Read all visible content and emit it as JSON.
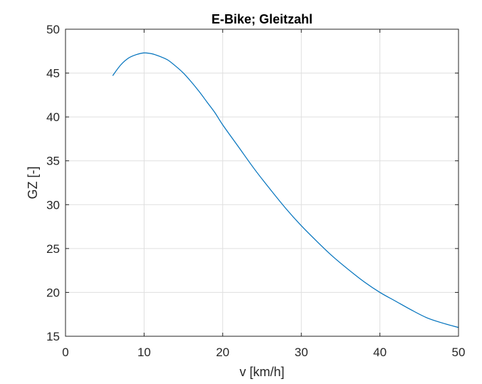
{
  "chart_data": {
    "type": "line",
    "title": "E-Bike; Gleitzahl",
    "xlabel": "v [km/h]",
    "ylabel": "GZ [-]",
    "xlim": [
      0,
      50
    ],
    "ylim": [
      15,
      50
    ],
    "xticks": [
      0,
      10,
      20,
      30,
      40,
      50
    ],
    "yticks": [
      15,
      20,
      25,
      30,
      35,
      40,
      45,
      50
    ],
    "grid": true,
    "series": [
      {
        "color": "#0072BD",
        "x": [
          6,
          7,
          8,
          9,
          10,
          11,
          12,
          13,
          14,
          15,
          16,
          17,
          18,
          19,
          20,
          22,
          24,
          26,
          28,
          30,
          32,
          34,
          36,
          38,
          40,
          42,
          44,
          46,
          48,
          50
        ],
        "y": [
          44.7,
          45.9,
          46.7,
          47.1,
          47.3,
          47.2,
          46.9,
          46.5,
          45.8,
          45.0,
          44.0,
          42.9,
          41.7,
          40.5,
          39.1,
          36.6,
          34.1,
          31.8,
          29.6,
          27.6,
          25.8,
          24.1,
          22.6,
          21.2,
          20.0,
          19.0,
          18.0,
          17.1,
          16.5,
          16.0
        ]
      }
    ]
  },
  "colors": {
    "axes": "#262626",
    "grid": "#dfdfdf",
    "line": "#0072BD"
  }
}
